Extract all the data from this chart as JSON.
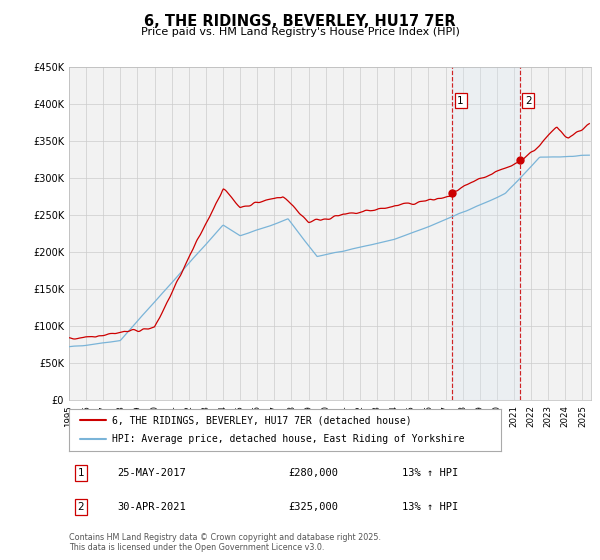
{
  "title": "6, THE RIDINGS, BEVERLEY, HU17 7ER",
  "subtitle": "Price paid vs. HM Land Registry's House Price Index (HPI)",
  "legend_line1": "6, THE RIDINGS, BEVERLEY, HU17 7ER (detached house)",
  "legend_line2": "HPI: Average price, detached house, East Riding of Yorkshire",
  "sale1_date": "25-MAY-2017",
  "sale1_price": "£280,000",
  "sale1_hpi": "13% ↑ HPI",
  "sale1_year": 2017.38,
  "sale1_value": 280000,
  "sale2_date": "30-APR-2021",
  "sale2_price": "£325,000",
  "sale2_hpi": "13% ↑ HPI",
  "sale2_year": 2021.33,
  "sale2_value": 325000,
  "hpi_color": "#7ab4d8",
  "price_color": "#cc0000",
  "vline_color": "#cc0000",
  "shade_color": "#d8e8f5",
  "dot_color": "#cc0000",
  "ylim": [
    0,
    450000
  ],
  "xlim_start": 1995,
  "xlim_end": 2025.5,
  "footer": "Contains HM Land Registry data © Crown copyright and database right 2025.\nThis data is licensed under the Open Government Licence v3.0.",
  "bg_color": "#f2f2f2"
}
